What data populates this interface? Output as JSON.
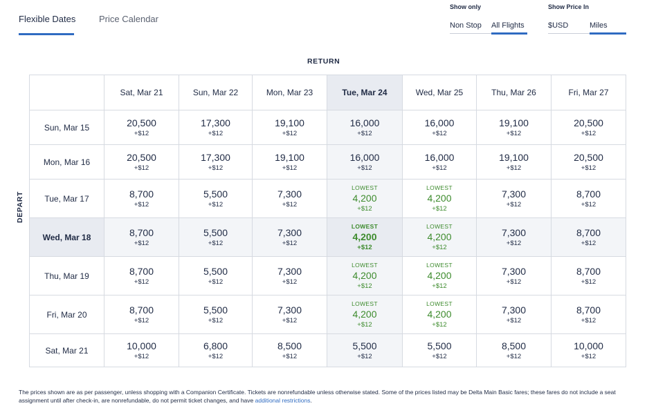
{
  "tabs": {
    "flexible": "Flexible Dates",
    "calendar": "Price Calendar"
  },
  "show_only": {
    "title": "Show only",
    "non_stop": "Non Stop",
    "all_flights": "All Flights"
  },
  "show_price": {
    "title": "Show Price In",
    "usd": "$USD",
    "miles": "Miles"
  },
  "accent_color": "#2f6bc1",
  "lowest_color": "#3d8b2d",
  "return_label": "RETURN",
  "depart_label": "DEPART",
  "return_dates": [
    "Sat, Mar 21",
    "Sun, Mar 22",
    "Mon, Mar 23",
    "Tue, Mar 24",
    "Wed, Mar 25",
    "Thu, Mar 26",
    "Fri, Mar 27"
  ],
  "selected_return": 3,
  "selected_depart": 3,
  "lowest_label": "LOWEST",
  "rows": [
    {
      "depart": "Sun, Mar 15",
      "cells": [
        {
          "miles": "20,500",
          "fee": "+$12",
          "lowest": false
        },
        {
          "miles": "17,300",
          "fee": "+$12",
          "lowest": false
        },
        {
          "miles": "19,100",
          "fee": "+$12",
          "lowest": false
        },
        {
          "miles": "16,000",
          "fee": "+$12",
          "lowest": false
        },
        {
          "miles": "16,000",
          "fee": "+$12",
          "lowest": false
        },
        {
          "miles": "19,100",
          "fee": "+$12",
          "lowest": false
        },
        {
          "miles": "20,500",
          "fee": "+$12",
          "lowest": false
        }
      ]
    },
    {
      "depart": "Mon, Mar 16",
      "cells": [
        {
          "miles": "20,500",
          "fee": "+$12",
          "lowest": false
        },
        {
          "miles": "17,300",
          "fee": "+$12",
          "lowest": false
        },
        {
          "miles": "19,100",
          "fee": "+$12",
          "lowest": false
        },
        {
          "miles": "16,000",
          "fee": "+$12",
          "lowest": false
        },
        {
          "miles": "16,000",
          "fee": "+$12",
          "lowest": false
        },
        {
          "miles": "19,100",
          "fee": "+$12",
          "lowest": false
        },
        {
          "miles": "20,500",
          "fee": "+$12",
          "lowest": false
        }
      ]
    },
    {
      "depart": "Tue, Mar 17",
      "cells": [
        {
          "miles": "8,700",
          "fee": "+$12",
          "lowest": false
        },
        {
          "miles": "5,500",
          "fee": "+$12",
          "lowest": false
        },
        {
          "miles": "7,300",
          "fee": "+$12",
          "lowest": false
        },
        {
          "miles": "4,200",
          "fee": "+$12",
          "lowest": true
        },
        {
          "miles": "4,200",
          "fee": "+$12",
          "lowest": true
        },
        {
          "miles": "7,300",
          "fee": "+$12",
          "lowest": false
        },
        {
          "miles": "8,700",
          "fee": "+$12",
          "lowest": false
        }
      ]
    },
    {
      "depart": "Wed, Mar 18",
      "cells": [
        {
          "miles": "8,700",
          "fee": "+$12",
          "lowest": false
        },
        {
          "miles": "5,500",
          "fee": "+$12",
          "lowest": false
        },
        {
          "miles": "7,300",
          "fee": "+$12",
          "lowest": false
        },
        {
          "miles": "4,200",
          "fee": "+$12",
          "lowest": true
        },
        {
          "miles": "4,200",
          "fee": "+$12",
          "lowest": true
        },
        {
          "miles": "7,300",
          "fee": "+$12",
          "lowest": false
        },
        {
          "miles": "8,700",
          "fee": "+$12",
          "lowest": false
        }
      ]
    },
    {
      "depart": "Thu, Mar 19",
      "cells": [
        {
          "miles": "8,700",
          "fee": "+$12",
          "lowest": false
        },
        {
          "miles": "5,500",
          "fee": "+$12",
          "lowest": false
        },
        {
          "miles": "7,300",
          "fee": "+$12",
          "lowest": false
        },
        {
          "miles": "4,200",
          "fee": "+$12",
          "lowest": true
        },
        {
          "miles": "4,200",
          "fee": "+$12",
          "lowest": true
        },
        {
          "miles": "7,300",
          "fee": "+$12",
          "lowest": false
        },
        {
          "miles": "8,700",
          "fee": "+$12",
          "lowest": false
        }
      ]
    },
    {
      "depart": "Fri, Mar 20",
      "cells": [
        {
          "miles": "8,700",
          "fee": "+$12",
          "lowest": false
        },
        {
          "miles": "5,500",
          "fee": "+$12",
          "lowest": false
        },
        {
          "miles": "7,300",
          "fee": "+$12",
          "lowest": false
        },
        {
          "miles": "4,200",
          "fee": "+$12",
          "lowest": true
        },
        {
          "miles": "4,200",
          "fee": "+$12",
          "lowest": true
        },
        {
          "miles": "7,300",
          "fee": "+$12",
          "lowest": false
        },
        {
          "miles": "8,700",
          "fee": "+$12",
          "lowest": false
        }
      ]
    },
    {
      "depart": "Sat, Mar 21",
      "cells": [
        {
          "miles": "10,000",
          "fee": "+$12",
          "lowest": false
        },
        {
          "miles": "6,800",
          "fee": "+$12",
          "lowest": false
        },
        {
          "miles": "8,500",
          "fee": "+$12",
          "lowest": false
        },
        {
          "miles": "5,500",
          "fee": "+$12",
          "lowest": false
        },
        {
          "miles": "5,500",
          "fee": "+$12",
          "lowest": false
        },
        {
          "miles": "8,500",
          "fee": "+$12",
          "lowest": false
        },
        {
          "miles": "10,000",
          "fee": "+$12",
          "lowest": false
        }
      ]
    }
  ],
  "disclaimer": {
    "text": "The prices shown are as per passenger, unless shopping with a Companion Certificate. Tickets are nonrefundable unless otherwise stated. Some of the prices listed may be Delta Main Basic fares; these fares do not include a seat assignment until after check-in, are nonrefundable, do not permit ticket changes, and have ",
    "link": "additional restrictions",
    "end": "."
  }
}
